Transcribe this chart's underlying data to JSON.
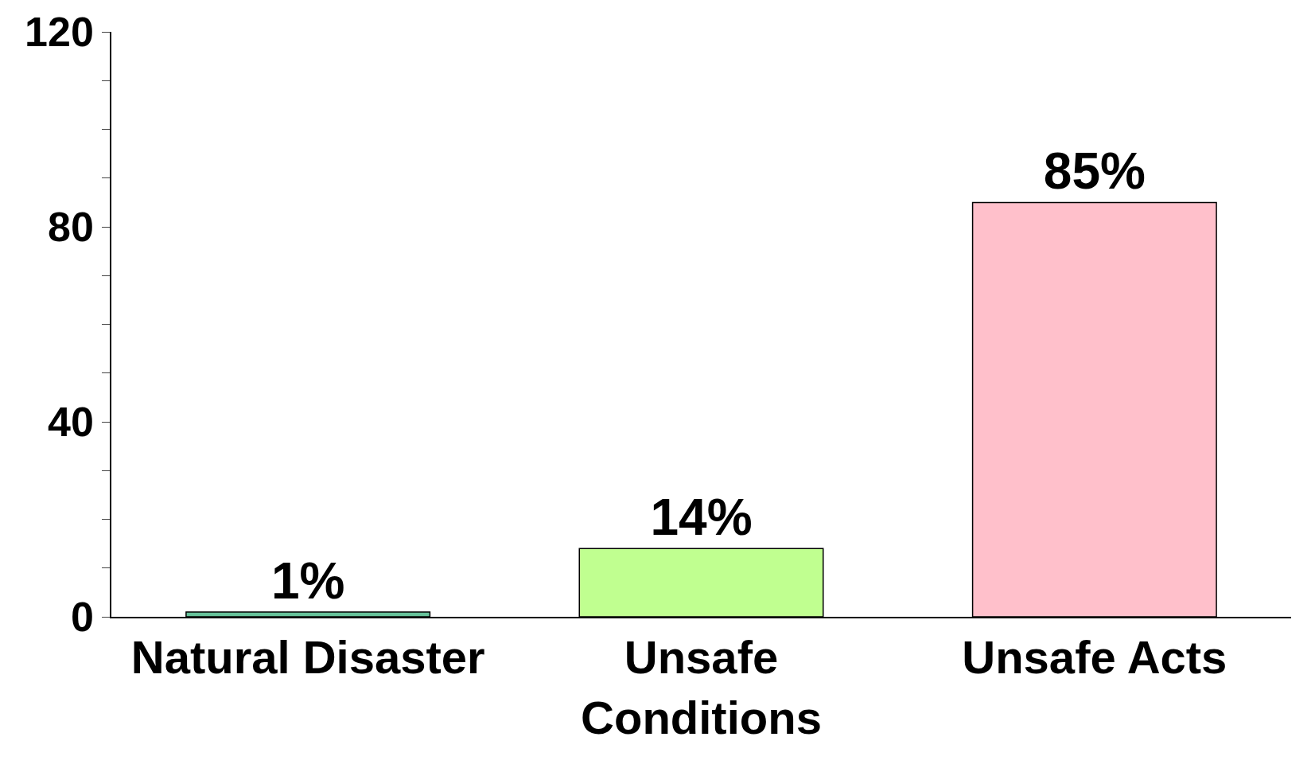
{
  "chart_data": {
    "type": "bar",
    "categories": [
      "Natural Disaster",
      "Unsafe\nConditions",
      "Unsafe Acts"
    ],
    "values": [
      1,
      14,
      85
    ],
    "value_labels": [
      "1%",
      "14%",
      "85%"
    ],
    "colors": [
      "#66c29a",
      "#c0ff90",
      "#ffc0cb"
    ],
    "ylim": [
      0,
      120
    ],
    "yticks": [
      0,
      {
        "value": 10,
        "label": null
      },
      {
        "value": 20,
        "label": null
      },
      {
        "value": 30,
        "label": null
      },
      40,
      {
        "value": 50,
        "label": null
      },
      {
        "value": 60,
        "label": null
      },
      {
        "value": 70,
        "label": null
      },
      80,
      {
        "value": 90,
        "label": null
      },
      {
        "value": 100,
        "label": null
      },
      {
        "value": 110,
        "label": null
      },
      120
    ]
  }
}
